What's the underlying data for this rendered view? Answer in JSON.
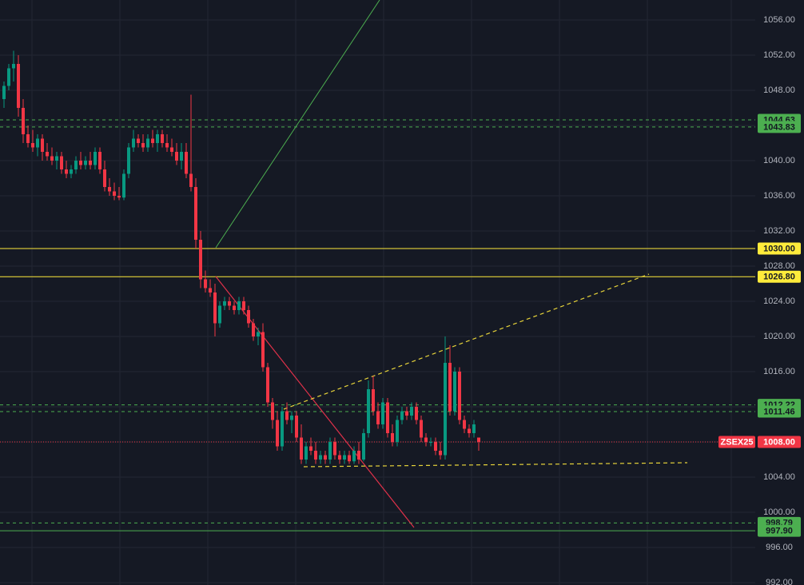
{
  "chart_data": {
    "type": "candlestick",
    "symbol": "ZSEX25",
    "up_color": "#089981",
    "down_color": "#f23645",
    "ylim": [
      991.73,
      1058.27
    ],
    "yticks": [
      {
        "value": 992,
        "label": "992.00"
      },
      {
        "value": 996,
        "label": "996.00"
      },
      {
        "value": 1000,
        "label": "1000.00"
      },
      {
        "value": 1004,
        "label": "1004.00"
      },
      {
        "value": 1008,
        "label": "1008.00"
      },
      {
        "value": 1012,
        "label": "1012.00"
      },
      {
        "value": 1016,
        "label": "1016.00"
      },
      {
        "value": 1020,
        "label": "1020.00"
      },
      {
        "value": 1024,
        "label": "1024.00"
      },
      {
        "value": 1028,
        "label": "1028.00"
      },
      {
        "value": 1032,
        "label": "1032.00"
      },
      {
        "value": 1036,
        "label": "1036.00"
      },
      {
        "value": 1040,
        "label": "1040.00"
      },
      {
        "value": 1044,
        "label": "1044.00"
      },
      {
        "value": 1048,
        "label": "1048.00"
      },
      {
        "value": 1052,
        "label": "1052.00"
      },
      {
        "value": 1056,
        "label": "1056.00"
      }
    ],
    "grid": true,
    "price_lines": [
      {
        "value": 1044.63,
        "color": "#4caf50",
        "style": "dashed"
      },
      {
        "value": 1043.83,
        "color": "#4caf50",
        "style": "dashed"
      },
      {
        "value": 1030,
        "label": "1030.00",
        "color": "#ffeb3b",
        "style": "solid"
      },
      {
        "value": 1026.8,
        "label": "1026.80",
        "color": "#ffeb3b",
        "style": "solid"
      },
      {
        "value": 1012.22,
        "color": "#4caf50",
        "style": "dashed"
      },
      {
        "value": 1011.46,
        "color": "#4caf50",
        "style": "dashed"
      },
      {
        "value": 1008,
        "label": "1008.00",
        "color": "#f23645",
        "style": "dotted"
      },
      {
        "value": 998.79,
        "color": "#4caf50",
        "style": "dashed"
      },
      {
        "value": 997.9,
        "label": "997.90",
        "color": "#4caf50",
        "style": "solid"
      }
    ],
    "ohlc": [
      [
        1047,
        1049,
        1046,
        1048.5
      ],
      [
        1048.5,
        1051,
        1048,
        1050.5
      ],
      [
        1050.5,
        1052.5,
        1049,
        1051
      ],
      [
        1051,
        1052,
        1045,
        1046
      ],
      [
        1046,
        1047,
        1042,
        1043
      ],
      [
        1043,
        1044,
        1041.5,
        1042
      ],
      [
        1042,
        1043.5,
        1041,
        1041.5
      ],
      [
        1041.5,
        1043,
        1040.5,
        1042.5
      ],
      [
        1042.5,
        1043,
        1040,
        1041
      ],
      [
        1041,
        1042,
        1040,
        1040.5
      ],
      [
        1040.5,
        1041.5,
        1039.5,
        1040
      ],
      [
        1040,
        1041,
        1039,
        1040.5
      ],
      [
        1040.5,
        1041,
        1038.5,
        1039
      ],
      [
        1039,
        1040,
        1038,
        1038.5
      ],
      [
        1038.5,
        1039.5,
        1038,
        1039
      ],
      [
        1039,
        1040.5,
        1038.5,
        1040
      ],
      [
        1040,
        1041,
        1039,
        1039.5
      ],
      [
        1039.5,
        1040.5,
        1039,
        1040
      ],
      [
        1040,
        1041,
        1039,
        1039.5
      ],
      [
        1039.5,
        1041.5,
        1039,
        1041
      ],
      [
        1041,
        1041.5,
        1038.5,
        1039
      ],
      [
        1039,
        1040,
        1036.5,
        1037
      ],
      [
        1037,
        1038,
        1036,
        1036.5
      ],
      [
        1036.5,
        1037.5,
        1035.5,
        1036
      ],
      [
        1036,
        1037,
        1035.5,
        1035.8
      ],
      [
        1035.8,
        1039,
        1035.5,
        1038.5
      ],
      [
        1038.5,
        1042,
        1038,
        1041.5
      ],
      [
        1041.5,
        1043.5,
        1041,
        1042.5
      ],
      [
        1042.5,
        1043,
        1041.5,
        1042
      ],
      [
        1042,
        1043,
        1041,
        1041.5
      ],
      [
        1041.5,
        1043,
        1041,
        1042.5
      ],
      [
        1042.5,
        1043.5,
        1041.5,
        1042
      ],
      [
        1042,
        1043.5,
        1041,
        1043
      ],
      [
        1043,
        1043.5,
        1041.5,
        1042
      ],
      [
        1042,
        1043,
        1041,
        1041.5
      ],
      [
        1041.5,
        1042.5,
        1040.5,
        1041
      ],
      [
        1041,
        1042,
        1039.5,
        1040
      ],
      [
        1040,
        1042,
        1039,
        1041
      ],
      [
        1041,
        1042,
        1038,
        1038.5
      ],
      [
        1038.5,
        1047.5,
        1036.5,
        1037
      ],
      [
        1037,
        1038,
        1030,
        1031
      ],
      [
        1031,
        1032,
        1025.5,
        1026.5
      ],
      [
        1026.5,
        1027.5,
        1025,
        1025.5
      ],
      [
        1025.5,
        1026.5,
        1024.5,
        1025
      ],
      [
        1025,
        1026,
        1020,
        1021.5
      ],
      [
        1021.5,
        1024,
        1021,
        1023.5
      ],
      [
        1023.5,
        1024.5,
        1023,
        1024
      ],
      [
        1024,
        1024.5,
        1023,
        1023.5
      ],
      [
        1023.5,
        1024,
        1022.5,
        1023
      ],
      [
        1023,
        1024.5,
        1022.5,
        1024
      ],
      [
        1024,
        1024.5,
        1022.5,
        1023
      ],
      [
        1023,
        1023.5,
        1021,
        1021.5
      ],
      [
        1021.5,
        1022,
        1019.5,
        1020
      ],
      [
        1020,
        1021,
        1019,
        1020.5
      ],
      [
        1020.5,
        1021.5,
        1016,
        1016.5
      ],
      [
        1016.5,
        1017,
        1012,
        1012.5
      ],
      [
        1012.5,
        1013,
        1009.5,
        1010.5
      ],
      [
        1010.5,
        1011.5,
        1007,
        1007.5
      ],
      [
        1007.5,
        1012,
        1007,
        1011.5
      ],
      [
        1011.5,
        1012.5,
        1010,
        1010.5
      ],
      [
        1010.5,
        1011.5,
        1009,
        1011
      ],
      [
        1011,
        1011.5,
        1008,
        1008.5
      ],
      [
        1008.5,
        1010,
        1005.5,
        1006
      ],
      [
        1006,
        1008,
        1005.5,
        1007.5
      ],
      [
        1007.5,
        1008.5,
        1006.5,
        1007
      ],
      [
        1007,
        1008,
        1005.5,
        1006
      ],
      [
        1006,
        1007,
        1005.5,
        1006.5
      ],
      [
        1006.5,
        1007,
        1005.5,
        1006
      ],
      [
        1006,
        1008.5,
        1005.5,
        1008
      ],
      [
        1008,
        1008.5,
        1006,
        1006.5
      ],
      [
        1006.5,
        1007,
        1005.5,
        1006
      ],
      [
        1006,
        1007,
        1005.5,
        1006.5
      ],
      [
        1006.5,
        1007,
        1005.5,
        1005.8
      ],
      [
        1005.8,
        1007.5,
        1005.5,
        1007
      ],
      [
        1007,
        1008,
        1005.5,
        1006
      ],
      [
        1006,
        1009.5,
        1005.8,
        1009
      ],
      [
        1009,
        1015,
        1008.5,
        1014
      ],
      [
        1014,
        1015.5,
        1011,
        1011.5
      ],
      [
        1011.5,
        1012.5,
        1009.5,
        1010
      ],
      [
        1010,
        1013,
        1009.5,
        1012.5
      ],
      [
        1012.5,
        1013,
        1008.5,
        1009
      ],
      [
        1009,
        1010,
        1007.5,
        1008
      ],
      [
        1008,
        1011,
        1007.5,
        1010.5
      ],
      [
        1010.5,
        1012,
        1010,
        1011.5
      ],
      [
        1011.5,
        1012,
        1010.5,
        1011
      ],
      [
        1011,
        1012.5,
        1010.5,
        1012
      ],
      [
        1012,
        1012.5,
        1010,
        1010.5
      ],
      [
        1010.5,
        1011,
        1008,
        1008.5
      ],
      [
        1008.5,
        1009,
        1007.5,
        1008
      ],
      [
        1008,
        1008.5,
        1007.5,
        1008
      ],
      [
        1008,
        1008.5,
        1006.5,
        1007
      ],
      [
        1007,
        1008,
        1006,
        1006.5
      ],
      [
        1006.5,
        1020,
        1006,
        1017
      ],
      [
        1017,
        1019,
        1011,
        1011.5
      ],
      [
        1011.5,
        1016.5,
        1011,
        1016
      ],
      [
        1016,
        1016.5,
        1010,
        1010.5
      ],
      [
        1010.5,
        1011,
        1009,
        1009.5
      ],
      [
        1009.5,
        1010,
        1008.5,
        1009
      ],
      [
        1009,
        1010.5,
        1008.5,
        1010
      ],
      [
        1008.5,
        1008.5,
        1007,
        1008
      ]
    ]
  }
}
